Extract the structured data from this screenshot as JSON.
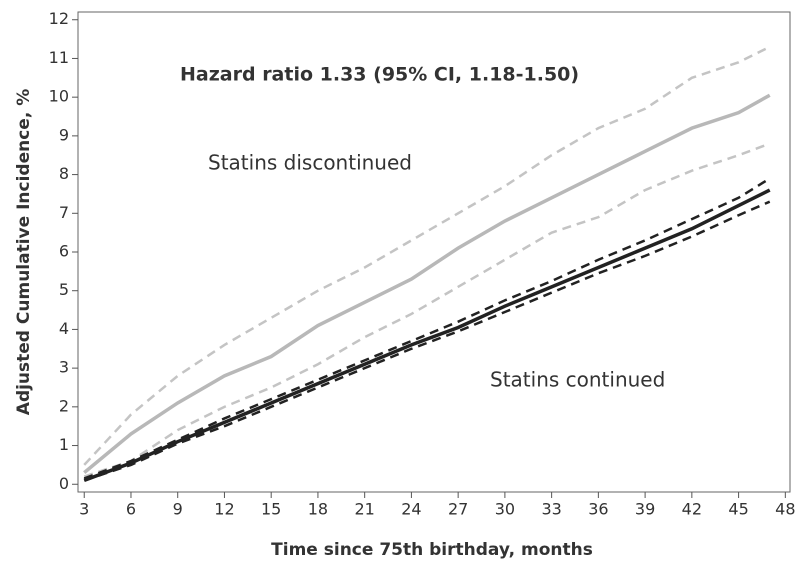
{
  "chart_data": {
    "type": "line",
    "x_label": "Time since 75th birthday, months",
    "y_label": "Adjusted Cumulative Incidence, %",
    "xlim": [
      2.6,
      48.3
    ],
    "ylim": [
      -0.2,
      12.2
    ],
    "xticks": [
      3,
      6,
      9,
      12,
      15,
      18,
      21,
      24,
      27,
      30,
      33,
      36,
      39,
      42,
      45,
      48
    ],
    "yticks": [
      0,
      1,
      2,
      3,
      4,
      5,
      6,
      7,
      8,
      9,
      10,
      11,
      12
    ],
    "grid": false,
    "x": [
      3,
      6,
      9,
      12,
      15,
      18,
      21,
      24,
      27,
      30,
      33,
      36,
      39,
      42,
      45,
      47
    ],
    "series": [
      {
        "color": "#c4c4c4",
        "dash": true,
        "values": [
          0.5,
          1.8,
          2.8,
          3.6,
          4.3,
          5.0,
          5.6,
          6.3,
          7.0,
          7.7,
          8.5,
          9.2,
          9.7,
          10.5,
          10.9,
          11.3
        ]
      },
      {
        "color": "#c4c4c4",
        "dash": true,
        "values": [
          0.2,
          0.6,
          1.4,
          2.0,
          2.5,
          3.1,
          3.8,
          4.4,
          5.1,
          5.8,
          6.5,
          6.9,
          7.6,
          8.1,
          8.5,
          8.8
        ]
      },
      {
        "color": "#b8b8b8",
        "dash": false,
        "values": [
          0.3,
          1.3,
          2.1,
          2.8,
          3.3,
          4.1,
          4.7,
          5.3,
          6.1,
          6.8,
          7.4,
          8.0,
          8.6,
          9.2,
          9.6,
          10.05
        ]
      },
      {
        "color": "#222222",
        "dash": true,
        "values": [
          0.15,
          0.6,
          1.15,
          1.7,
          2.2,
          2.7,
          3.2,
          3.7,
          4.2,
          4.75,
          5.25,
          5.8,
          6.3,
          6.85,
          7.4,
          7.9
        ]
      },
      {
        "color": "#222222",
        "dash": true,
        "values": [
          0.1,
          0.5,
          1.05,
          1.5,
          2.0,
          2.5,
          3.0,
          3.5,
          3.95,
          4.45,
          4.95,
          5.45,
          5.9,
          6.4,
          6.95,
          7.3
        ]
      },
      {
        "color": "#222222",
        "dash": false,
        "values": [
          0.1,
          0.55,
          1.1,
          1.6,
          2.1,
          2.6,
          3.1,
          3.6,
          4.05,
          4.6,
          5.1,
          5.6,
          6.1,
          6.6,
          7.2,
          7.6
        ]
      }
    ],
    "annotations": [
      "Hazard ratio 1.33 (95% CI, 1.18-1.50)",
      "Statins discontinued",
      "Statins continued"
    ]
  }
}
